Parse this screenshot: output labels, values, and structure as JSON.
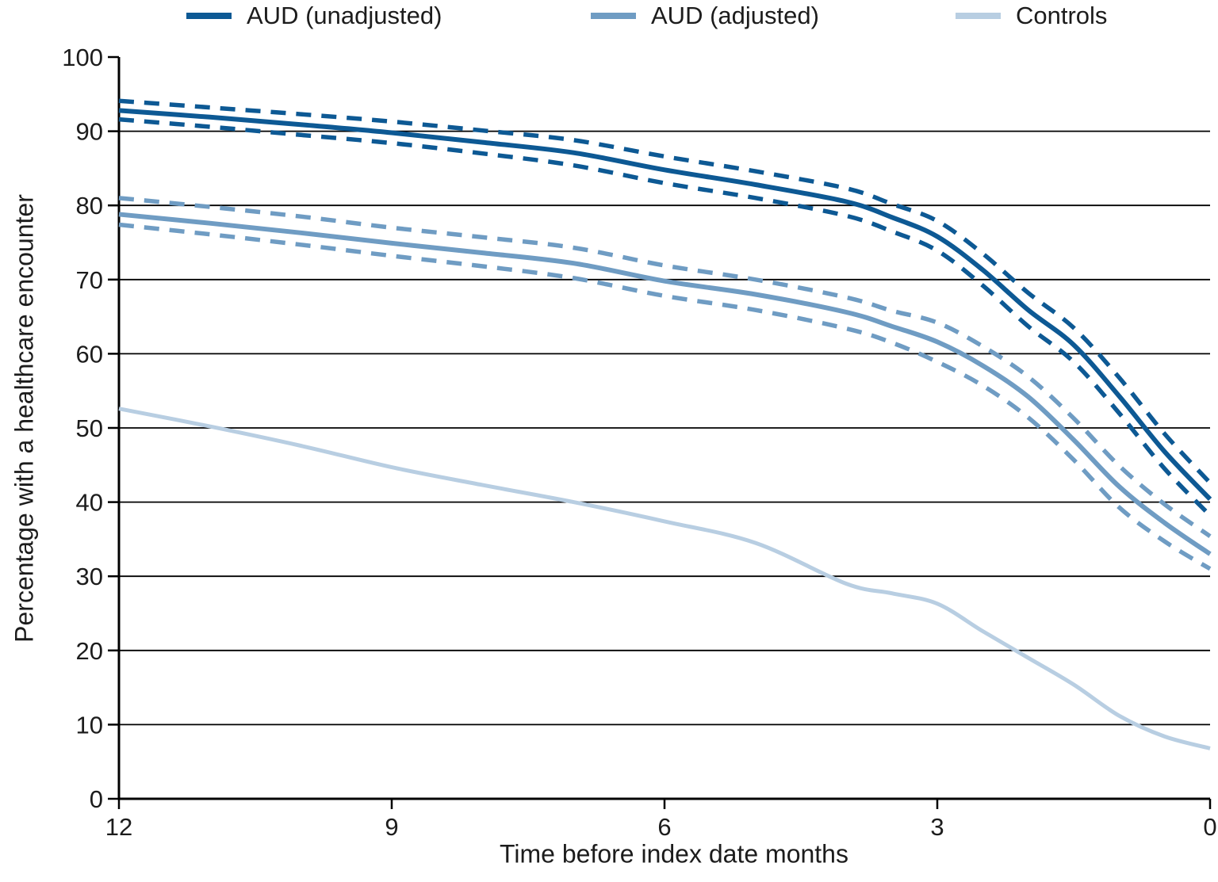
{
  "figure": {
    "type": "line-chart",
    "background": "#ffffff"
  },
  "legend": {
    "items": [
      {
        "id": "aud-unadjusted",
        "label": "AUD (unadjusted)",
        "color": "#0d5994"
      },
      {
        "id": "aud-adjusted",
        "label": "AUD (adjusted)",
        "color": "#6f9cc3"
      },
      {
        "id": "controls",
        "label": "Controls",
        "color": "#b8cee2"
      }
    ]
  },
  "chart_data": {
    "type": "line",
    "title": "",
    "xlabel": "Time before index date months",
    "ylabel": "Percentage with a healthcare encounter",
    "xlim": [
      12,
      0
    ],
    "ylim": [
      0,
      100
    ],
    "x_ticks": [
      12,
      9,
      6,
      3,
      0
    ],
    "y_ticks": [
      0,
      10,
      20,
      30,
      40,
      50,
      60,
      70,
      80,
      90,
      100
    ],
    "gridlines": [
      10,
      20,
      30,
      40,
      50,
      60,
      70,
      80,
      90
    ],
    "grid": "horizontal",
    "legend_position": "top",
    "grid_color": "#000000",
    "axis_color": "#000000",
    "text_color": "#1c1c1c",
    "x": [
      12,
      11,
      10,
      9,
      8,
      7,
      6,
      5,
      4,
      3.5,
      3,
      2.5,
      2,
      1.5,
      1,
      0.5,
      0
    ],
    "series": [
      {
        "id": "aud-unadjusted-ci-upper",
        "name": "AUD (unadjusted) 95% CI upper",
        "color": "#0d5994",
        "dashed": true,
        "width": 5.5,
        "values": [
          94.1,
          93.2,
          92.3,
          91.3,
          90.1,
          88.8,
          86.6,
          84.6,
          82.3,
          80.2,
          77.9,
          73.5,
          68.2,
          63.5,
          56.8,
          49.2,
          42.6
        ]
      },
      {
        "id": "aud-unadjusted-ci-lower",
        "name": "AUD (unadjusted) 95% CI lower",
        "color": "#0d5994",
        "dashed": true,
        "width": 5.5,
        "values": [
          91.6,
          90.6,
          89.5,
          88.4,
          87.0,
          85.4,
          83.0,
          81.0,
          78.6,
          76.5,
          73.9,
          69.2,
          63.7,
          58.9,
          52.0,
          44.5,
          38.2
        ]
      },
      {
        "id": "aud-adjusted-ci-upper",
        "name": "AUD (adjusted) 95% CI upper",
        "color": "#6f9cc3",
        "dashed": true,
        "width": 5.5,
        "values": [
          81.0,
          79.8,
          78.5,
          77.0,
          75.7,
          74.3,
          71.9,
          70.0,
          67.6,
          65.8,
          64.2,
          61.0,
          56.9,
          51.3,
          44.9,
          39.7,
          35.4
        ]
      },
      {
        "id": "aud-adjusted-ci-lower",
        "name": "AUD (adjusted) 95% CI lower",
        "color": "#6f9cc3",
        "dashed": true,
        "width": 5.5,
        "values": [
          77.4,
          76.1,
          74.7,
          73.2,
          71.8,
          70.2,
          67.8,
          65.9,
          63.4,
          61.5,
          58.9,
          55.7,
          51.4,
          45.7,
          39.3,
          34.7,
          31.0
        ]
      },
      {
        "id": "controls",
        "name": "Controls",
        "color": "#b8cee2",
        "dashed": false,
        "width": 5,
        "values": [
          52.6,
          50.2,
          47.6,
          44.7,
          42.3,
          40.0,
          37.4,
          34.5,
          29.0,
          27.7,
          26.3,
          22.6,
          19.0,
          15.4,
          11.2,
          8.4,
          6.8
        ]
      },
      {
        "id": "aud-adjusted",
        "name": "AUD (adjusted)",
        "color": "#6f9cc3",
        "dashed": false,
        "width": 6,
        "values": [
          78.8,
          77.6,
          76.3,
          74.9,
          73.6,
          72.2,
          69.8,
          68.0,
          65.6,
          63.7,
          61.6,
          58.4,
          54.2,
          48.4,
          42.1,
          37.2,
          33.0
        ]
      },
      {
        "id": "aud-unadjusted",
        "name": "AUD (unadjusted)",
        "color": "#0d5994",
        "dashed": false,
        "width": 6,
        "values": [
          92.8,
          91.9,
          90.9,
          89.8,
          88.5,
          87.1,
          84.8,
          82.8,
          80.5,
          78.4,
          75.8,
          71.3,
          65.9,
          61.2,
          54.3,
          46.8,
          40.4
        ]
      }
    ]
  }
}
